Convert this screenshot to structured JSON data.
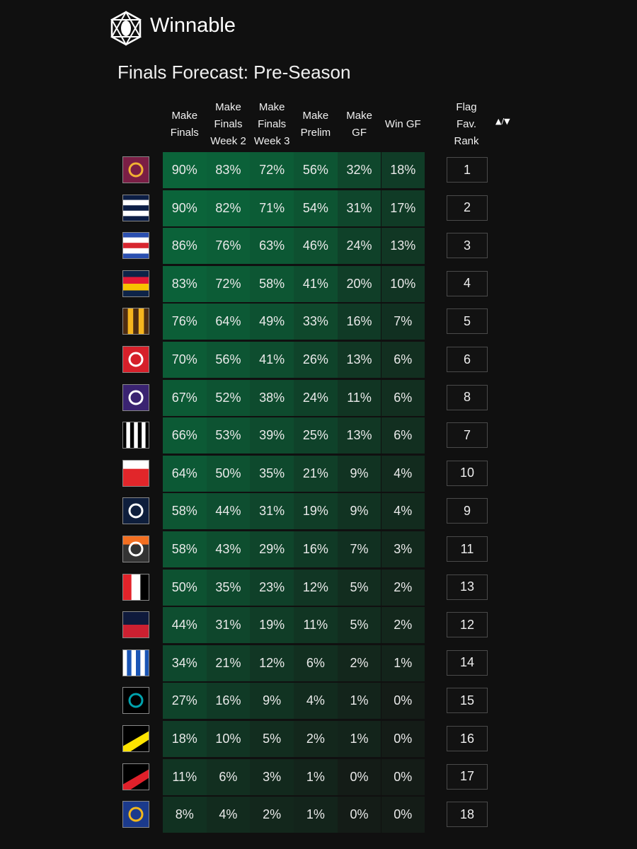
{
  "header": {
    "brand": "Winnable",
    "title": "Finals Forecast: Pre-Season"
  },
  "table": {
    "columns": [
      "Make\nFinals",
      "Make\nFinals\nWeek 2",
      "Make\nFinals\nWeek 3",
      "Make\nPrelim",
      "Make\nGF",
      "Win GF",
      "Flag\nFav.\nRank"
    ],
    "sort_toggle": "▲/▼",
    "rows": [
      [
        "90%",
        "83%",
        "72%",
        "56%",
        "32%",
        "18%",
        "1"
      ],
      [
        "90%",
        "82%",
        "71%",
        "54%",
        "31%",
        "17%",
        "2"
      ],
      [
        "86%",
        "76%",
        "63%",
        "46%",
        "24%",
        "13%",
        "3"
      ],
      [
        "83%",
        "72%",
        "58%",
        "41%",
        "20%",
        "10%",
        "4"
      ],
      [
        "76%",
        "64%",
        "49%",
        "33%",
        "16%",
        "7%",
        "5"
      ],
      [
        "70%",
        "56%",
        "41%",
        "26%",
        "13%",
        "6%",
        "6"
      ],
      [
        "67%",
        "52%",
        "38%",
        "24%",
        "11%",
        "6%",
        "8"
      ],
      [
        "66%",
        "53%",
        "39%",
        "25%",
        "13%",
        "6%",
        "7"
      ],
      [
        "64%",
        "50%",
        "35%",
        "21%",
        "9%",
        "4%",
        "10"
      ],
      [
        "58%",
        "44%",
        "31%",
        "19%",
        "9%",
        "4%",
        "9"
      ],
      [
        "58%",
        "43%",
        "29%",
        "16%",
        "7%",
        "3%",
        "11"
      ],
      [
        "50%",
        "35%",
        "23%",
        "12%",
        "5%",
        "2%",
        "13"
      ],
      [
        "44%",
        "31%",
        "19%",
        "11%",
        "5%",
        "2%",
        "12"
      ],
      [
        "34%",
        "21%",
        "12%",
        "6%",
        "2%",
        "1%",
        "14"
      ],
      [
        "27%",
        "16%",
        "9%",
        "4%",
        "1%",
        "0%",
        "15"
      ],
      [
        "18%",
        "10%",
        "5%",
        "2%",
        "1%",
        "0%",
        "16"
      ],
      [
        "11%",
        "6%",
        "3%",
        "1%",
        "0%",
        "0%",
        "17"
      ],
      [
        "8%",
        "4%",
        "2%",
        "1%",
        "0%",
        "0%",
        "18"
      ]
    ]
  }
}
